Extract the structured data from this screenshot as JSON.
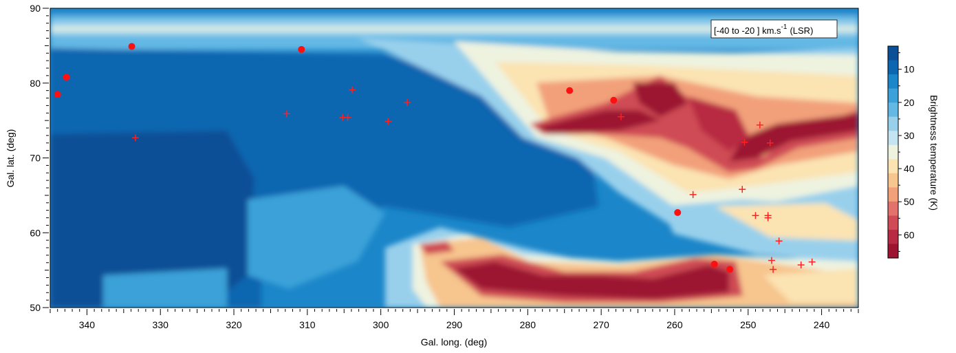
{
  "chart_data": {
    "type": "heatmap",
    "xlabel": "Gal. long. (deg)",
    "ylabel": "Gal. lat. (deg)",
    "xlim": [
      345,
      235
    ],
    "ylim": [
      50,
      90
    ],
    "x_ticks": [
      "340",
      "330",
      "320",
      "310",
      "300",
      "290",
      "280",
      "270",
      "260",
      "250",
      "240"
    ],
    "y_ticks": [
      "50",
      "60",
      "70",
      "80",
      "90"
    ],
    "annotation": {
      "prefix": "[-40 to -20 ] km.s",
      "superscript": "-1",
      "suffix": "(LSR)"
    },
    "colorbar": {
      "label": "Brightness temperature (K)",
      "range": [
        3,
        67
      ],
      "ticks": [
        "10",
        "20",
        "30",
        "40",
        "50",
        "60"
      ],
      "colors": [
        "#0b4f96",
        "#0d66b0",
        "#1b86c9",
        "#3ba1d8",
        "#64b8e4",
        "#98d0ec",
        "#c4e4f1",
        "#eef3e0",
        "#fbe3b2",
        "#f7c58e",
        "#f2a07a",
        "#e2726b",
        "#cf4b55",
        "#b82a43",
        "#9c1432"
      ]
    },
    "dots": [
      {
        "l": 344.0,
        "b": 78.5
      },
      {
        "l": 342.8,
        "b": 80.8
      },
      {
        "l": 333.9,
        "b": 84.9
      },
      {
        "l": 310.8,
        "b": 84.5
      },
      {
        "l": 274.3,
        "b": 79.0
      },
      {
        "l": 268.3,
        "b": 77.7
      },
      {
        "l": 259.6,
        "b": 62.7
      },
      {
        "l": 254.6,
        "b": 55.8
      },
      {
        "l": 252.5,
        "b": 55.1
      }
    ],
    "crosses": [
      {
        "l": 333.4,
        "b": 72.7
      },
      {
        "l": 312.8,
        "b": 75.9
      },
      {
        "l": 305.2,
        "b": 75.4
      },
      {
        "l": 304.5,
        "b": 75.4
      },
      {
        "l": 303.9,
        "b": 79.1
      },
      {
        "l": 299.0,
        "b": 74.9
      },
      {
        "l": 296.4,
        "b": 77.4
      },
      {
        "l": 267.3,
        "b": 75.5
      },
      {
        "l": 257.5,
        "b": 65.1
      },
      {
        "l": 250.8,
        "b": 65.8
      },
      {
        "l": 250.5,
        "b": 72.1
      },
      {
        "l": 248.4,
        "b": 74.4
      },
      {
        "l": 247.0,
        "b": 72.0
      },
      {
        "l": 249.0,
        "b": 62.3
      },
      {
        "l": 247.3,
        "b": 62.3
      },
      {
        "l": 247.3,
        "b": 62.0
      },
      {
        "l": 246.8,
        "b": 56.3
      },
      {
        "l": 246.6,
        "b": 55.1
      },
      {
        "l": 245.8,
        "b": 58.9
      },
      {
        "l": 242.8,
        "b": 55.7
      },
      {
        "l": 241.3,
        "b": 56.1
      }
    ]
  }
}
